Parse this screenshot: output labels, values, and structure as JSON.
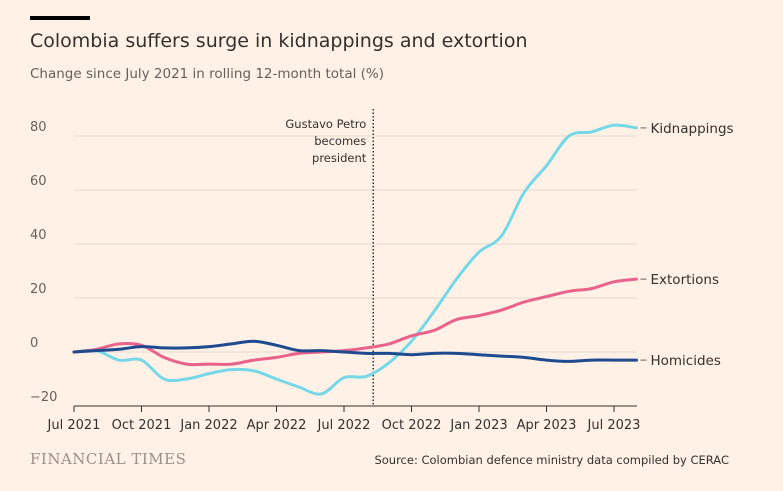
{
  "title": "Colombia suffers surge in kidnappings and extortion",
  "subtitle": "Change since July 2021 in rolling 12-month total (%)",
  "brand": "FINANCIAL TIMES",
  "source": "Source: Colombian defence ministry data compiled by CERAC",
  "colors": {
    "background": "#fff1e5",
    "kidnappings": "#75d8e8",
    "extortions": "#e8628b",
    "homicides": "#1e4b8f",
    "grid": "#e6d9ce",
    "axis": "#33302e"
  },
  "chart_data": {
    "type": "line",
    "title": "Colombia suffers surge in kidnappings and extortion",
    "subtitle": "Change since July 2021 in rolling 12-month total (%)",
    "xlabel": "",
    "ylabel": "",
    "ylim": [
      -20,
      90
    ],
    "yticks": [
      -20,
      0,
      20,
      40,
      60,
      80
    ],
    "ytick_labels": [
      "−20",
      "0",
      "20",
      "40",
      "60",
      "80"
    ],
    "xticks": [
      "Jul 2021",
      "Oct 2021",
      "Jan 2022",
      "Apr 2022",
      "Jul 2022",
      "Oct 2022",
      "Jan 2023",
      "Apr 2023",
      "Jul 2023"
    ],
    "grid": true,
    "legend": "direct-labels-right",
    "x": [
      "Jul 2021",
      "Aug 2021",
      "Sep 2021",
      "Oct 2021",
      "Nov 2021",
      "Dec 2021",
      "Jan 2022",
      "Feb 2022",
      "Mar 2022",
      "Apr 2022",
      "May 2022",
      "Jun 2022",
      "Jul 2022",
      "Aug 2022",
      "Sep 2022",
      "Oct 2022",
      "Nov 2022",
      "Dec 2022",
      "Jan 2023",
      "Feb 2023",
      "Mar 2023",
      "Apr 2023",
      "May 2023",
      "Jun 2023",
      "Jul 2023",
      "Aug 2023"
    ],
    "series": [
      {
        "name": "Kidnappings",
        "color": "#75d8e8",
        "values": [
          0,
          0.5,
          -3,
          -3,
          -10,
          -10,
          -8,
          -6.5,
          -7,
          -10,
          -13,
          -15.5,
          -9.5,
          -9,
          -4,
          4,
          15,
          27,
          37,
          43,
          59,
          69,
          80,
          81.5,
          84,
          83
        ]
      },
      {
        "name": "Extortions",
        "color": "#e8628b",
        "values": [
          0,
          1,
          3,
          2.5,
          -2,
          -4.5,
          -4.5,
          -4.5,
          -3,
          -2,
          -0.5,
          0,
          0.5,
          1.5,
          3,
          6,
          8,
          12,
          13.5,
          15.5,
          18.5,
          20.5,
          22.5,
          23.5,
          26,
          27
        ]
      },
      {
        "name": "Homicides",
        "color": "#1e4b8f",
        "values": [
          0,
          0.5,
          1,
          2,
          1.5,
          1.5,
          2,
          3,
          4,
          2.5,
          0.5,
          0.5,
          0,
          -0.5,
          -0.5,
          -1,
          -0.5,
          -0.5,
          -1,
          -1.5,
          -2,
          -3,
          -3.5,
          -3,
          -3,
          -3
        ]
      }
    ],
    "annotations": [
      {
        "x": "Aug 2022",
        "x_offset_months": 0.3,
        "style": "dotted-vertical-line",
        "lines": [
          "Gustavo Petro",
          "becomes",
          "president"
        ]
      }
    ]
  }
}
